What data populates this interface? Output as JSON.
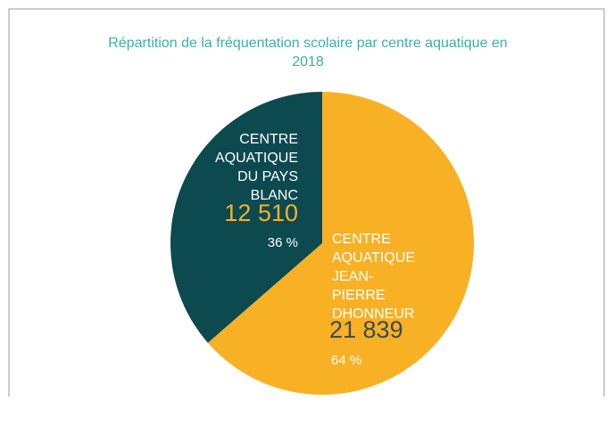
{
  "chart_data": {
    "type": "pie",
    "title": "Répartition de la fréquentation scolaire par centre aquatique en 2018",
    "categories": [
      "CENTRE AQUATIQUE JEAN-PIERRE DHONNEUR",
      "CENTRE AQUATIQUE DU PAYS BLANC"
    ],
    "values": [
      21839,
      12510
    ],
    "value_labels": [
      "21 839",
      "12 510"
    ],
    "percentages": [
      64,
      36
    ],
    "percentage_labels": [
      "64 %",
      "36 %"
    ],
    "colors": [
      "#f8b124",
      "#0c4a50"
    ]
  }
}
